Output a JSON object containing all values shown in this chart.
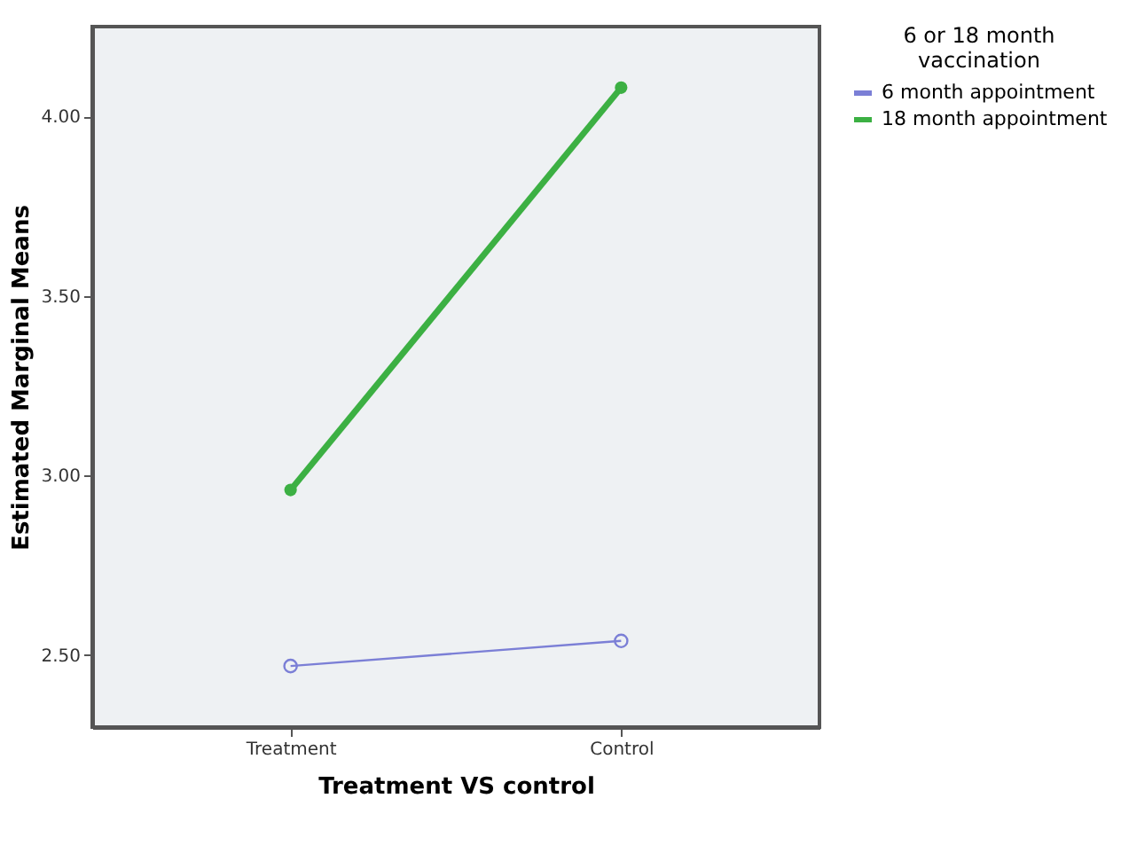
{
  "chart_data": {
    "type": "line",
    "xlabel": "Treatment VS control",
    "ylabel": "Estimated Marginal Means",
    "legend_title": "6 or 18 month vaccination",
    "categories": [
      "Treatment",
      "Control"
    ],
    "series": [
      {
        "name": "6 month appointment",
        "color": "#7b7fd6",
        "values": [
          2.47,
          2.54
        ]
      },
      {
        "name": "18 month appointment",
        "color": "#3cb043",
        "values": [
          2.96,
          4.08
        ]
      }
    ],
    "ylim": [
      2.3,
      4.25
    ],
    "yticks": [
      {
        "value": 2.5,
        "label": "2.50"
      },
      {
        "value": 3.0,
        "label": "3.00"
      },
      {
        "value": 3.5,
        "label": "3.50"
      },
      {
        "value": 4.0,
        "label": "4.00"
      }
    ],
    "grid": false,
    "legend": "right",
    "marker": "circle",
    "line_style": "solid"
  }
}
